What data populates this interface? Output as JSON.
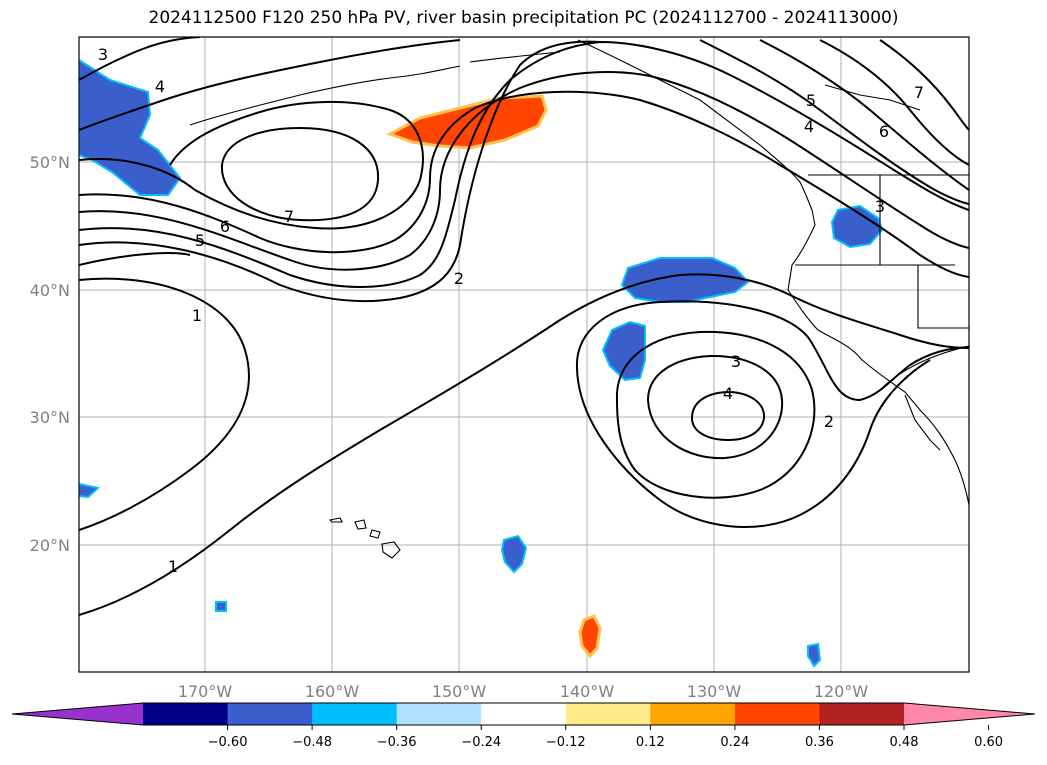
{
  "title": "2024112500 F120 250 hPa PV, river basin precipitation PC (2024112700 - 2024113000)",
  "lat_labels": [
    "50°N",
    "40°N",
    "30°N",
    "20°N"
  ],
  "lon_labels": [
    "170°W",
    "160°W",
    "150°W",
    "140°W",
    "130°W",
    "120°W"
  ],
  "contour_labels": [
    "3",
    "4",
    "7",
    "6",
    "5",
    "2",
    "1",
    "3",
    "4",
    "2",
    "1",
    "5",
    "4",
    "6",
    "7",
    "3"
  ],
  "colorbar": {
    "colors": [
      "#9932cc",
      "#00008b",
      "#3a5fcd",
      "#00bfff",
      "#b0e2ff",
      "#ffffff",
      "#ffeb8a",
      "#ffa500",
      "#ff4500",
      "#b22222",
      "#ff88aa"
    ],
    "tick_labels": [
      "−0.60",
      "−0.48",
      "−0.36",
      "−0.24",
      "−0.12",
      "0.12",
      "0.24",
      "0.36",
      "0.48",
      "0.60"
    ]
  },
  "colors": {
    "negative_fill": "#3a5fcd",
    "negative_edge": "#00bfff",
    "positive_fill": "#ff4500",
    "positive_edge": "#ffa500"
  }
}
